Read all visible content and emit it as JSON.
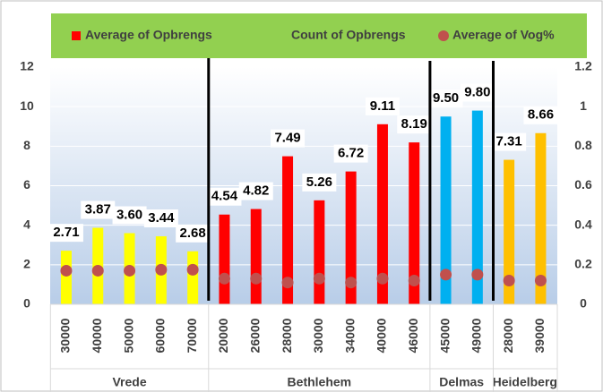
{
  "chart_data": {
    "type": "bar",
    "groups": [
      {
        "name": "Vrede",
        "categories": [
          "30000",
          "40000",
          "50000",
          "60000",
          "70000"
        ]
      },
      {
        "name": "Bethlehem",
        "categories": [
          "20000",
          "26000",
          "28000",
          "30000",
          "34000",
          "40000",
          "46000"
        ]
      },
      {
        "name": "Delmas",
        "categories": [
          "45000",
          "49000"
        ]
      },
      {
        "name": "Heidelberg",
        "categories": [
          "28000",
          "39000"
        ]
      }
    ],
    "series": [
      {
        "name": "Average of Opbrengs",
        "color": "#ff0000",
        "bar_colors": [
          "#ffff00",
          "#ffff00",
          "#ffff00",
          "#ffff00",
          "#ffff00",
          "#ff0000",
          "#ff0000",
          "#ff0000",
          "#ff0000",
          "#ff0000",
          "#ff0000",
          "#ff0000",
          "#00b0f0",
          "#00b0f0",
          "#ffc000",
          "#ffc000"
        ],
        "values": [
          2.71,
          3.87,
          3.6,
          3.44,
          2.68,
          4.54,
          4.82,
          7.49,
          5.26,
          6.72,
          9.11,
          8.19,
          9.5,
          9.8,
          7.31,
          8.66
        ],
        "value_labels": [
          "2.71",
          "3.87",
          "3.60",
          "3.44",
          "2.68",
          "4.54",
          "4.82",
          "7.49",
          "5.26",
          "6.72",
          "9.11",
          "8.19",
          "9.50",
          "9.80",
          "7.31",
          "8.66"
        ]
      },
      {
        "name": "Count of Opbrengs",
        "color": "#92d050",
        "values": [
          null,
          null,
          null,
          null,
          null,
          null,
          null,
          null,
          null,
          null,
          null,
          null,
          null,
          null,
          null,
          null
        ]
      },
      {
        "name": "Average of Vog%",
        "color": "#c0504d",
        "axis": "y2",
        "values": [
          0.17,
          0.17,
          0.17,
          0.175,
          0.175,
          0.13,
          0.13,
          0.11,
          0.13,
          0.11,
          0.13,
          0.12,
          0.15,
          0.15,
          0.12,
          0.12
        ]
      }
    ],
    "ylim": [
      0,
      12
    ],
    "yticks": [
      0,
      2,
      4,
      6,
      8,
      10,
      12
    ],
    "y2lim": [
      0,
      1.2
    ],
    "y2ticks": [
      0,
      0.2,
      0.4,
      0.6,
      0.8,
      1,
      1.2
    ],
    "grid": true,
    "legend": "top"
  }
}
